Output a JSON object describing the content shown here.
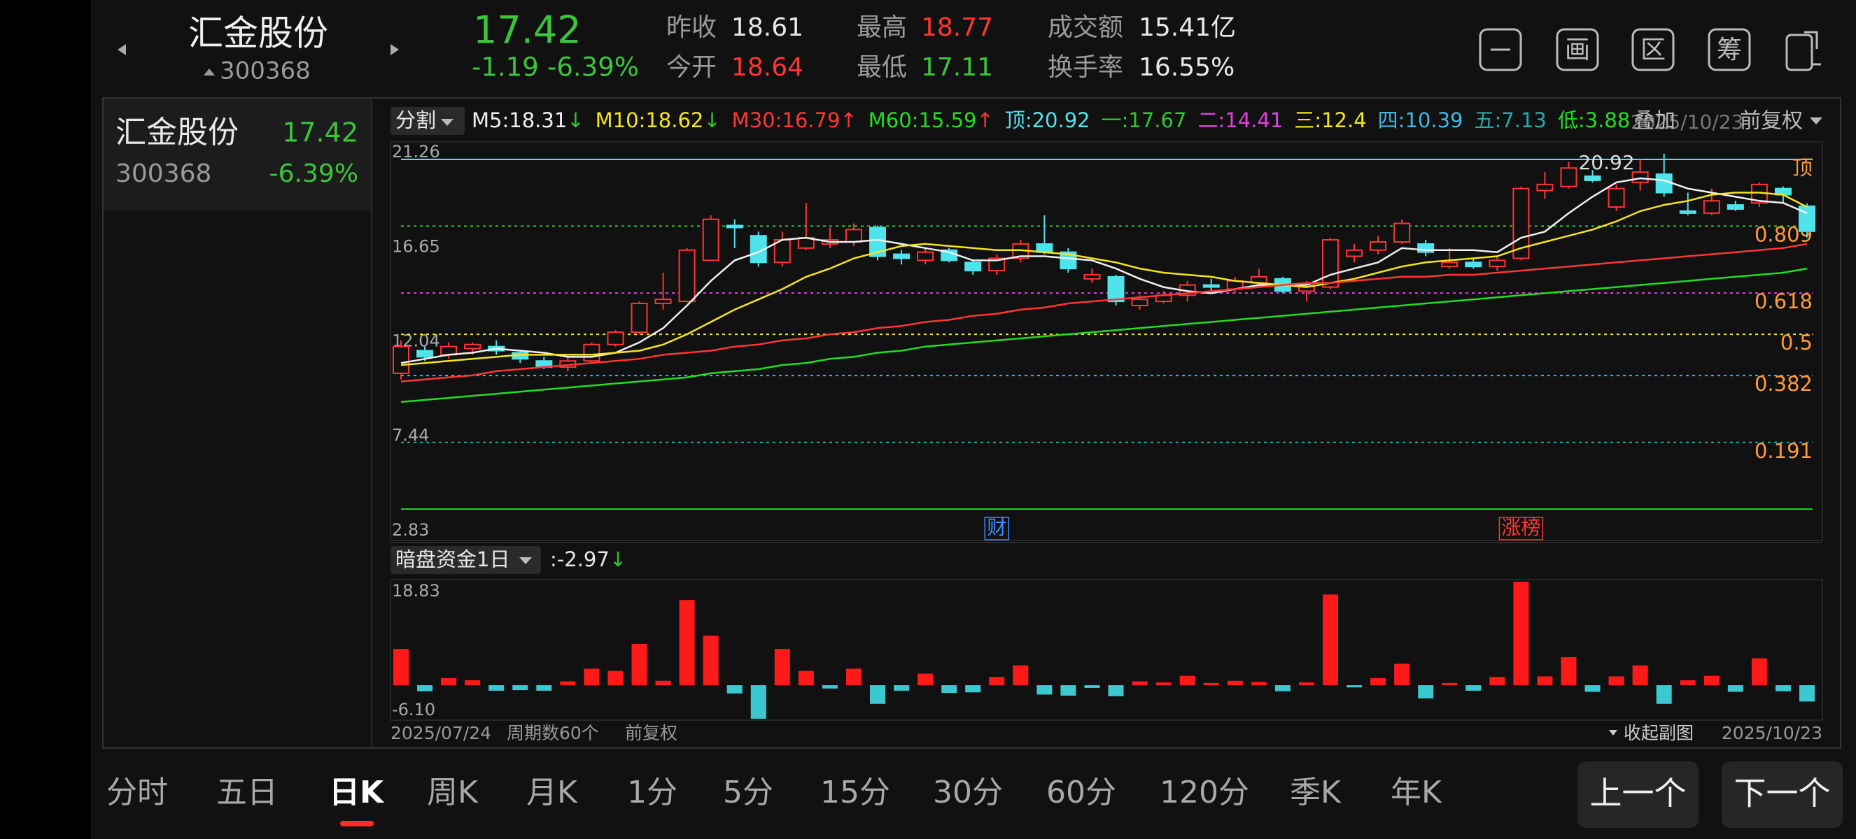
{
  "header": {
    "name": "汇金股份",
    "code": "300368",
    "price": 17.42,
    "change": -1.19,
    "change_pct": "-6.39%",
    "price_color": "#3cc43c",
    "stats": [
      {
        "label": "昨收",
        "value": 18.61,
        "color": "#e8e8e8"
      },
      {
        "label": "今开",
        "value": 18.64,
        "color": "#ff3535"
      },
      {
        "label": "最高",
        "value": 18.77,
        "color": "#ff3535"
      },
      {
        "label": "最低",
        "value": 17.11,
        "color": "#3cc43c"
      },
      {
        "label": "成交额",
        "value": "15.41亿",
        "color": "#e8e8e8"
      },
      {
        "label": "换手率",
        "value": "16.55%",
        "color": "#e8e8e8"
      }
    ],
    "toolbar_icons": [
      "画",
      "区",
      "筹"
    ]
  },
  "quote_list": [
    {
      "name": "汇金股份",
      "price": 17.42,
      "code": "300368",
      "change_pct": "-6.39%",
      "color": "#3cc43c"
    }
  ],
  "chart_data": [
    {
      "type": "candlestick",
      "split_label": "分割",
      "overlay_label": "叠加",
      "adjust_label": "前复权",
      "legend_separator": ":",
      "up_color": "#ff3535",
      "down_color": "#4fe3ec",
      "ylim": [
        2.83,
        21.26
      ],
      "yticks": [
        21.26,
        16.65,
        12.04,
        7.44,
        2.83
      ],
      "categories": [
        "2025/07/24",
        null,
        null,
        null,
        null,
        null,
        null,
        null,
        null,
        null,
        null,
        null,
        null,
        null,
        null,
        null,
        null,
        null,
        null,
        null,
        null,
        null,
        null,
        null,
        null,
        null,
        null,
        null,
        null,
        null,
        null,
        null,
        null,
        null,
        null,
        null,
        null,
        null,
        null,
        null,
        null,
        null,
        null,
        null,
        null,
        null,
        null,
        null,
        null,
        null,
        null,
        null,
        null,
        null,
        null,
        null,
        null,
        null,
        null,
        "2025/10/23"
      ],
      "period_label": "周期数60个",
      "open": [
        10.5,
        11.6,
        11.4,
        11.7,
        11.8,
        11.5,
        11.1,
        10.8,
        11.1,
        11.9,
        12.5,
        13.9,
        14.0,
        16.0,
        17.7,
        17.2,
        15.9,
        16.6,
        16.8,
        16.9,
        17.6,
        16.3,
        16.0,
        16.5,
        15.9,
        15.5,
        16.1,
        16.8,
        16.4,
        15.1,
        15.2,
        13.8,
        14.0,
        14.3,
        14.8,
        14.6,
        14.9,
        15.1,
        14.5,
        14.7,
        16.2,
        16.5,
        16.9,
        16.8,
        15.7,
        15.9,
        15.7,
        16.1,
        19.4,
        19.6,
        20.1,
        18.6,
        19.8,
        20.2,
        18.4,
        18.3,
        18.7,
        18.8,
        19.5,
        18.64
      ],
      "high": [
        12.1,
        11.8,
        12.0,
        12.0,
        12.1,
        11.6,
        11.3,
        11.3,
        12.0,
        12.6,
        14.0,
        15.4,
        16.6,
        18.2,
        18.0,
        17.4,
        17.4,
        18.8,
        17.6,
        17.8,
        17.7,
        16.5,
        16.6,
        16.6,
        16.0,
        16.3,
        17.0,
        18.2,
        16.6,
        15.6,
        15.3,
        14.3,
        14.5,
        15.0,
        15.1,
        15.2,
        15.6,
        15.2,
        15.0,
        17.1,
        16.8,
        17.2,
        18.0,
        17.0,
        16.6,
        16.1,
        16.2,
        19.6,
        20.3,
        20.8,
        20.4,
        19.7,
        20.92,
        21.2,
        19.3,
        19.5,
        18.9,
        19.8,
        19.6,
        18.77
      ],
      "low": [
        10.2,
        11.1,
        11.2,
        11.4,
        11.4,
        11.0,
        10.7,
        10.6,
        11.0,
        11.8,
        12.4,
        13.6,
        14.0,
        16.0,
        16.6,
        15.7,
        15.7,
        16.5,
        16.6,
        16.7,
        16.0,
        15.8,
        15.8,
        15.9,
        15.3,
        15.3,
        15.9,
        16.3,
        15.4,
        14.9,
        13.8,
        13.6,
        13.9,
        14.0,
        14.5,
        14.4,
        14.7,
        14.4,
        14.0,
        14.6,
        15.9,
        16.3,
        16.8,
        16.2,
        15.6,
        15.6,
        15.5,
        16.0,
        19.0,
        19.5,
        19.8,
        18.4,
        19.4,
        19.1,
        18.2,
        18.2,
        18.4,
        18.6,
        18.8,
        17.11
      ],
      "close": [
        11.8,
        11.3,
        11.8,
        11.9,
        11.6,
        11.2,
        10.8,
        11.1,
        11.9,
        12.5,
        13.9,
        14.1,
        16.5,
        18.0,
        17.6,
        15.9,
        17.0,
        17.1,
        17.0,
        17.5,
        16.2,
        16.1,
        16.4,
        16.0,
        15.5,
        16.1,
        16.8,
        16.4,
        15.6,
        15.3,
        14.0,
        14.1,
        14.3,
        14.8,
        14.7,
        15.0,
        15.2,
        14.5,
        14.8,
        17.0,
        16.5,
        16.9,
        17.8,
        16.4,
        15.9,
        15.7,
        16.0,
        19.5,
        19.7,
        20.5,
        19.9,
        19.5,
        20.3,
        19.3,
        18.3,
        18.9,
        18.5,
        19.7,
        19.2,
        17.42
      ],
      "series": [
        {
          "name": "M5",
          "color": "#f0f0f0",
          "last": 18.31,
          "trend": "↓",
          "values": [
            11.0,
            11.2,
            11.4,
            11.5,
            11.7,
            11.6,
            11.5,
            11.3,
            11.3,
            11.5,
            12.0,
            12.7,
            13.8,
            15.0,
            16.0,
            16.4,
            17.0,
            17.1,
            16.9,
            16.9,
            17.0,
            16.8,
            16.6,
            16.4,
            16.0,
            16.0,
            16.2,
            16.2,
            16.1,
            16.0,
            15.6,
            15.1,
            14.7,
            14.5,
            14.4,
            14.6,
            14.8,
            14.8,
            14.8,
            15.3,
            15.6,
            15.9,
            16.6,
            16.5,
            16.5,
            16.5,
            16.4,
            17.1,
            17.4,
            18.3,
            19.1,
            19.8,
            20.0,
            19.9,
            19.5,
            19.3,
            19.1,
            18.9,
            18.8,
            18.3
          ]
        },
        {
          "name": "M10",
          "color": "#f5e51b",
          "last": 18.62,
          "trend": "↓",
          "values": [
            10.9,
            11.0,
            11.1,
            11.2,
            11.3,
            11.4,
            11.4,
            11.4,
            11.4,
            11.5,
            11.6,
            11.9,
            12.4,
            13.0,
            13.6,
            14.1,
            14.6,
            15.2,
            15.6,
            16.1,
            16.4,
            16.7,
            16.8,
            16.7,
            16.6,
            16.5,
            16.5,
            16.4,
            16.3,
            16.1,
            15.9,
            15.6,
            15.4,
            15.3,
            15.2,
            15.0,
            14.9,
            14.8,
            14.7,
            14.9,
            15.1,
            15.4,
            15.7,
            15.9,
            16.0,
            16.1,
            16.2,
            16.6,
            16.9,
            17.2,
            17.5,
            17.9,
            18.4,
            18.7,
            18.9,
            19.2,
            19.3,
            19.3,
            19.2,
            18.6
          ]
        },
        {
          "name": "M30",
          "color": "#ff3535",
          "last": 16.79,
          "trend": "↑",
          "values": [
            10.1,
            10.2,
            10.3,
            10.4,
            10.6,
            10.7,
            10.8,
            10.9,
            11.0,
            11.1,
            11.2,
            11.4,
            11.5,
            11.6,
            11.8,
            11.9,
            12.1,
            12.2,
            12.4,
            12.5,
            12.7,
            12.8,
            13.0,
            13.1,
            13.3,
            13.4,
            13.6,
            13.7,
            13.9,
            14.0,
            14.1,
            14.2,
            14.3,
            14.4,
            14.5,
            14.6,
            14.7,
            14.8,
            14.9,
            14.9,
            15.0,
            15.1,
            15.2,
            15.2,
            15.3,
            15.3,
            15.4,
            15.5,
            15.6,
            15.7,
            15.8,
            15.9,
            16.0,
            16.1,
            16.2,
            16.3,
            16.4,
            16.5,
            16.6,
            16.8
          ]
        },
        {
          "name": "M60",
          "color": "#22dd22",
          "last": 15.59,
          "trend": "↑",
          "values": [
            9.1,
            9.2,
            9.3,
            9.4,
            9.5,
            9.6,
            9.7,
            9.8,
            9.9,
            10.0,
            10.1,
            10.2,
            10.3,
            10.5,
            10.6,
            10.7,
            10.9,
            11.0,
            11.2,
            11.3,
            11.5,
            11.6,
            11.8,
            11.9,
            12.0,
            12.1,
            12.2,
            12.3,
            12.4,
            12.5,
            12.6,
            12.7,
            12.8,
            12.9,
            13.0,
            13.1,
            13.2,
            13.3,
            13.4,
            13.5,
            13.6,
            13.7,
            13.8,
            13.9,
            14.0,
            14.1,
            14.2,
            14.3,
            14.4,
            14.5,
            14.6,
            14.7,
            14.8,
            14.9,
            15.0,
            15.1,
            15.2,
            15.3,
            15.4,
            15.6
          ]
        }
      ],
      "levels": [
        {
          "name": "顶",
          "value": 20.92,
          "color": "#4fe3ec",
          "ratio": "顶",
          "style": "solid"
        },
        {
          "name": "一",
          "value": 17.67,
          "color": "#33c433",
          "ratio": 0.809,
          "style": "dashed"
        },
        {
          "name": "二",
          "value": 14.41,
          "color": "#e040e0",
          "ratio": 0.618,
          "style": "dashed"
        },
        {
          "name": "三",
          "value": 12.4,
          "color": "#f5e51b",
          "ratio": 0.5,
          "style": "dashed"
        },
        {
          "name": "四",
          "value": 10.39,
          "color": "#3fb6e6",
          "ratio": 0.382,
          "style": "dashed"
        },
        {
          "name": "五",
          "value": 7.13,
          "color": "#2aa8a8",
          "ratio": 0.191,
          "style": "dashed"
        },
        {
          "name": "低",
          "value": 3.88,
          "color": "#22dd22",
          "style": "solid"
        }
      ],
      "level_label_color": "#ff9a3c",
      "markers": [
        null,
        null,
        null,
        null,
        null,
        null,
        null,
        null,
        null,
        null,
        null,
        null,
        null,
        null,
        null,
        null,
        null,
        null,
        null,
        null,
        null,
        null,
        null,
        null,
        null,
        {
          "text": "财",
          "color": "#3f8cff"
        },
        null,
        null,
        null,
        null,
        null,
        null,
        null,
        null,
        null,
        null,
        null,
        null,
        null,
        null,
        null,
        null,
        null,
        null,
        null,
        null,
        null,
        {
          "text": "涨榜",
          "color": "#ff3535"
        },
        null,
        null,
        null,
        null,
        null,
        null,
        null,
        null,
        null,
        null,
        null,
        null
      ]
    },
    {
      "type": "bar",
      "title": "暗盘资金1日",
      "separator": ":",
      "last": -2.97,
      "trend": "↓",
      "collapse_label": "收起副图",
      "adjust_label": "前复权",
      "up_color": "#ff1a1a",
      "down_color": "#3cc8d0",
      "ylim": [
        -6.1,
        18.83
      ],
      "yticks": [
        18.83,
        {
          "value": -6.1,
          "label": "-6.10"
        }
      ],
      "values": [
        6.6,
        -1.1,
        1.3,
        0.9,
        -1.0,
        -0.9,
        -1.0,
        0.7,
        3.0,
        2.6,
        7.5,
        0.8,
        15.5,
        9.0,
        -1.5,
        -6.1,
        6.6,
        2.6,
        -0.6,
        3.0,
        -3.4,
        -1.0,
        2.1,
        -1.4,
        -1.3,
        1.5,
        3.6,
        -1.7,
        -1.9,
        -0.5,
        -2.0,
        0.7,
        0.5,
        1.7,
        0.4,
        0.8,
        0.6,
        -1.1,
        0.5,
        16.5,
        -0.4,
        1.3,
        3.9,
        -2.4,
        0.4,
        -1.0,
        1.5,
        18.83,
        1.6,
        5.1,
        -1.2,
        1.6,
        3.6,
        -3.4,
        0.9,
        1.7,
        -1.2,
        4.9,
        -1.1,
        -2.97
      ]
    }
  ],
  "tabs": [
    {
      "label": "分时"
    },
    {
      "label": "五日"
    },
    {
      "label": "日K",
      "active": true
    },
    {
      "label": "周K"
    },
    {
      "label": "月K"
    },
    {
      "label": "1分"
    },
    {
      "label": "5分"
    },
    {
      "label": "15分"
    },
    {
      "label": "30分"
    },
    {
      "label": "60分"
    },
    {
      "label": "120分"
    },
    {
      "label": "季K"
    },
    {
      "label": "年K"
    }
  ],
  "buttons": [
    "上一个",
    "下一个"
  ]
}
